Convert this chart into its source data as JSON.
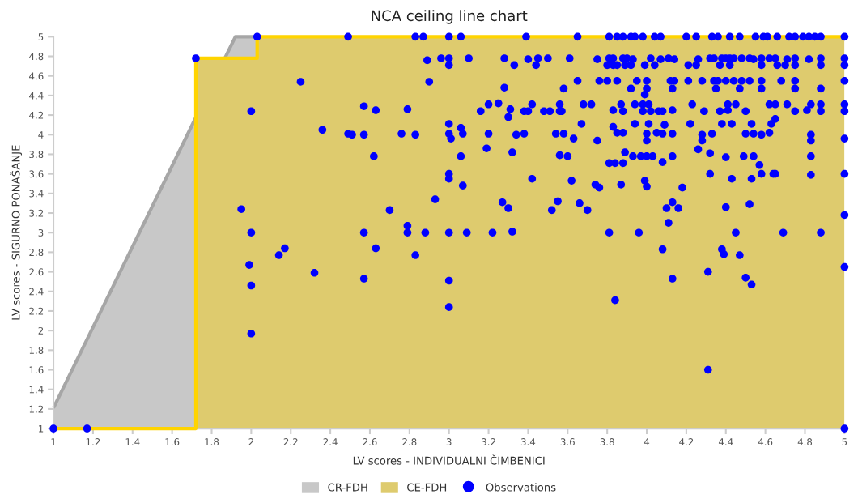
{
  "chart_data": {
    "type": "scatter",
    "title": "NCA ceiling line chart",
    "xlabel": "LV scores - INDIVIDUALNI ČIMBENICI",
    "ylabel": "LV scores - SIGURNO PONAŠANJE",
    "xlim": [
      1,
      5
    ],
    "ylim": [
      1,
      5
    ],
    "xticks": [
      1,
      1.2,
      1.4,
      1.6,
      1.8,
      2,
      2.2,
      2.4,
      2.6,
      2.8,
      3,
      3.2,
      3.4,
      3.6,
      3.8,
      4,
      4.2,
      4.4,
      4.6,
      4.8,
      5
    ],
    "yticks": [
      1,
      1.2,
      1.4,
      1.6,
      1.8,
      2,
      2.2,
      2.4,
      2.6,
      2.8,
      3,
      3.2,
      3.4,
      3.6,
      3.8,
      4,
      4.2,
      4.4,
      4.6,
      4.8,
      5
    ],
    "grid": false,
    "legend": "bottom",
    "series": [
      {
        "name": "CR-FDH",
        "type": "area",
        "color": "#c8c8c8",
        "x": [
          1,
          1.92,
          2.03
        ],
        "values": [
          1.21,
          5,
          5
        ]
      },
      {
        "name": "CE-FDH",
        "type": "area",
        "color": "#decb6e",
        "x": [
          1,
          1.72,
          1.72,
          2.03,
          2.03,
          5
        ],
        "values": [
          1,
          1,
          4.78,
          4.78,
          5,
          5
        ]
      },
      {
        "name": "Observations",
        "color": "#0000ff",
        "marker": "circle",
        "x": [
          2.03,
          2.49,
          2.83,
          2.87,
          3,
          3.06,
          3.39,
          3.65,
          3.81,
          3.85,
          3.88,
          3.92,
          3.94,
          3.98,
          4.04,
          4.07,
          4.2,
          4.25,
          4.33,
          4.36,
          4.42,
          4.47,
          4.55,
          4.59,
          4.61,
          4.66,
          4.72,
          4.75,
          4.79,
          4.82,
          4.85,
          4.88,
          5,
          1.72,
          2.89,
          2.96,
          3,
          3.1,
          3.28,
          3.4,
          3.45,
          3.5,
          3.61,
          3.75,
          3.81,
          3.83,
          3.88,
          3.9,
          3.93,
          4.02,
          4.07,
          4.11,
          4.14,
          4.26,
          4.32,
          4.34,
          4.38,
          4.4,
          4.42,
          4.44,
          4.48,
          4.52,
          4.54,
          4.58,
          4.62,
          4.65,
          4.71,
          4.75,
          4.82,
          4.88,
          5,
          3,
          3.33,
          3.44,
          3.8,
          3.83,
          3.85,
          3.89,
          3.92,
          3.99,
          4.04,
          4.21,
          4.25,
          4.37,
          4.42,
          4.58,
          4.66,
          4.7,
          4.75,
          4.88,
          5,
          2.25,
          2.9,
          3.65,
          3.76,
          3.8,
          3.85,
          3.95,
          4,
          4.12,
          4.14,
          4.21,
          4.28,
          4.34,
          4.36,
          4.4,
          4.44,
          4.48,
          4.52,
          4.58,
          4.68,
          4.75,
          5,
          3.28,
          3.58,
          3.92,
          4,
          4.13,
          4.35,
          4.47,
          4.58,
          4.75,
          4.88,
          3.99,
          2.57,
          3.2,
          3.25,
          3.42,
          3.56,
          3.68,
          3.72,
          3.87,
          3.94,
          3.98,
          4.01,
          4.23,
          4.41,
          4.45,
          4.62,
          4.65,
          4.71,
          4.83,
          4.88,
          5,
          2,
          2.63,
          2.79,
          3.16,
          3.31,
          3.3,
          3.38,
          3.4,
          3.48,
          3.51,
          3.56,
          3.57,
          3.83,
          3.88,
          3.98,
          4.02,
          4.06,
          4.08,
          4.13,
          4.29,
          4.37,
          4.41,
          4.5,
          4.65,
          4.75,
          4.81,
          4.88,
          5,
          3,
          3.06,
          3.67,
          3.83,
          3.94,
          4.01,
          4.09,
          4.22,
          4.38,
          4.43,
          4.53,
          4.63,
          2.36,
          2.49,
          2.51,
          2.57,
          2.76,
          2.83,
          3,
          3.07,
          3.2,
          3.34,
          3.38,
          3.54,
          3.58,
          3.63,
          3.01,
          3.85,
          3.88,
          4,
          4.05,
          4.08,
          4.13,
          4.28,
          4.33,
          4.5,
          4.54,
          4.58,
          4.62,
          4.83,
          3.75,
          4,
          4.28,
          4.83,
          5,
          3.19,
          3.32,
          3.56,
          3.6,
          2.62,
          3.06,
          3.89,
          3.93,
          3.97,
          4,
          4.03,
          4.13,
          4.26,
          4.32,
          4.4,
          4.49,
          4.54,
          4.83,
          3.81,
          3.84,
          3.88,
          4.08,
          4.57,
          3,
          3,
          3.07,
          3.42,
          3.62,
          3.87,
          3.74,
          3.76,
          3.99,
          4,
          4.18,
          4.32,
          4.43,
          4.53,
          4.58,
          4.64,
          4.65,
          4.83,
          5,
          2.93,
          2.7,
          3.27,
          3.3,
          3.55,
          3.52,
          3.66,
          3.7,
          4.1,
          4.13,
          4.16,
          4.11,
          4.4,
          4.52,
          5,
          1.95,
          2,
          2.57,
          2.79,
          2.88,
          3,
          3.09,
          3.22,
          3.32,
          2.79,
          3.81,
          3.96,
          4.45,
          4.69,
          4.88,
          2.17,
          2.14,
          1.99,
          2,
          2,
          2.32,
          2.63,
          2.83,
          2.57,
          3,
          3,
          4.08,
          4.38,
          4.39,
          4.47,
          4.31,
          4.13,
          4.5,
          4.53,
          3.84,
          4.31,
          5,
          1.17,
          1,
          5
        ],
        "values": [
          5,
          5,
          5,
          5,
          5,
          5,
          5,
          5,
          5,
          5,
          5,
          5,
          5,
          5,
          5,
          5,
          5,
          5,
          5,
          5,
          5,
          5,
          5,
          5,
          5,
          5,
          5,
          5,
          5,
          5,
          5,
          5,
          5,
          4.78,
          4.76,
          4.78,
          4.78,
          4.78,
          4.78,
          4.77,
          4.78,
          4.78,
          4.78,
          4.77,
          4.78,
          4.78,
          4.78,
          4.78,
          4.77,
          4.78,
          4.77,
          4.78,
          4.77,
          4.77,
          4.78,
          4.78,
          4.78,
          4.78,
          4.78,
          4.78,
          4.78,
          4.78,
          4.77,
          4.78,
          4.78,
          4.78,
          4.77,
          4.78,
          4.77,
          4.78,
          4.78,
          4.71,
          4.71,
          4.71,
          4.71,
          4.71,
          4.71,
          4.71,
          4.71,
          4.71,
          4.71,
          4.71,
          4.71,
          4.71,
          4.71,
          4.71,
          4.71,
          4.71,
          4.71,
          4.71,
          4.71,
          4.54,
          4.54,
          4.55,
          4.55,
          4.55,
          4.55,
          4.55,
          4.55,
          4.55,
          4.55,
          4.55,
          4.55,
          4.55,
          4.55,
          4.55,
          4.55,
          4.55,
          4.55,
          4.55,
          4.55,
          4.55,
          4.55,
          4.48,
          4.47,
          4.47,
          4.47,
          4.47,
          4.47,
          4.47,
          4.47,
          4.47,
          4.47,
          4.41,
          4.29,
          4.31,
          4.32,
          4.31,
          4.31,
          4.31,
          4.31,
          4.31,
          4.31,
          4.31,
          4.31,
          4.31,
          4.31,
          4.31,
          4.31,
          4.31,
          4.31,
          4.31,
          4.31,
          4.31,
          4.24,
          4.25,
          4.26,
          4.24,
          4.26,
          4.18,
          4.24,
          4.24,
          4.24,
          4.24,
          4.24,
          4.24,
          4.25,
          4.24,
          4.24,
          4.24,
          4.24,
          4.24,
          4.25,
          4.24,
          4.24,
          4.25,
          4.24,
          4.16,
          4.24,
          4.25,
          4.24,
          4.24,
          4.11,
          4.07,
          4.11,
          4.08,
          4.11,
          4.11,
          4.1,
          4.11,
          4.11,
          4.11,
          4.11,
          4.11,
          4.05,
          4.01,
          4,
          4,
          4.01,
          4,
          4.01,
          4.01,
          4.01,
          4,
          4.01,
          4.01,
          4.01,
          3.96,
          3.96,
          4.02,
          4.02,
          4.01,
          4.02,
          4.01,
          4.01,
          4,
          4.01,
          4.01,
          4.01,
          4,
          4.02,
          4,
          3.94,
          3.94,
          3.94,
          3.94,
          3.96,
          3.86,
          3.82,
          3.79,
          3.78,
          3.78,
          3.78,
          3.82,
          3.78,
          3.78,
          3.78,
          3.78,
          3.78,
          3.85,
          3.81,
          3.77,
          3.78,
          3.78,
          3.78,
          3.71,
          3.71,
          3.71,
          3.72,
          3.69,
          3.6,
          3.55,
          3.48,
          3.55,
          3.53,
          3.49,
          3.49,
          3.46,
          3.53,
          3.47,
          3.46,
          3.6,
          3.55,
          3.55,
          3.6,
          3.6,
          3.6,
          3.59,
          3.6,
          3.34,
          3.23,
          3.31,
          3.25,
          3.32,
          3.23,
          3.3,
          3.23,
          3.25,
          3.31,
          3.25,
          3.1,
          3.26,
          3.29,
          3.18,
          3.24,
          3,
          3,
          3,
          3,
          3,
          3,
          3,
          3.01,
          3.07,
          3,
          3,
          3,
          3,
          3,
          2.84,
          2.77,
          2.67,
          2.46,
          1.97,
          2.59,
          2.84,
          2.77,
          2.53,
          2.51,
          2.24,
          2.83,
          2.83,
          2.78,
          2.77,
          2.6,
          2.53,
          2.54,
          2.47,
          2.31,
          1.6,
          2.65,
          1,
          1,
          1
        ]
      }
    ]
  }
}
